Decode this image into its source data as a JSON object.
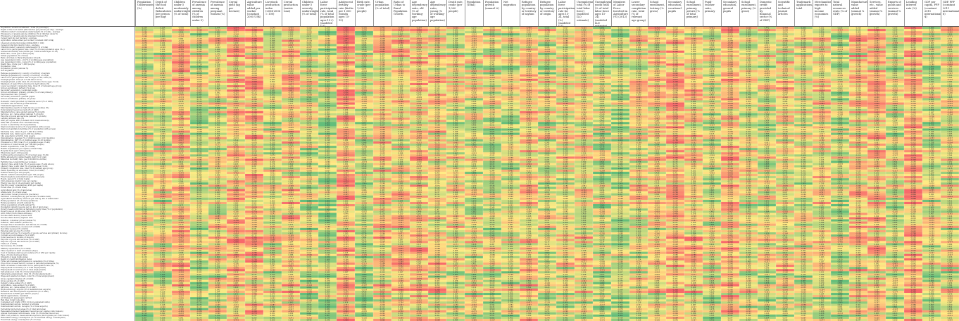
{
  "chart_data": {
    "type": "heatmap",
    "color_scale": {
      "low": "#f8696b",
      "mid": "#ffeb84",
      "high": "#63be7b"
    },
    "columns": [
      "Population Undernourished, (%)",
      "Depth of the food deficit (kilocalories per person per day)",
      "Children under 5 moderately underweight (% of total)",
      "Prevalence of anemia among children (% of children under 5)",
      "Prevalence of anemia among pregnant women (%)",
      "Cereal yield (kg per hectare)",
      "Agriculture value added per worker (constant 2005 US$)",
      "Livestock production index (2004-2006 = 100)",
      "Cereal production (metric tons)",
      "Children under 5 severely underweight (% of total)",
      "Labor force participation rate, total (% of total population ages 15+) (modeled ILO estimate)",
      "Adolescent fertility rate (births per 1,000 women ages 15-19)",
      "Birth rate, crude (per 1,000 people)",
      "Urban population (% of total)",
      "Ratio of Urban to Rural Population Growth",
      "Age dependency ratio, old (% of working-age population)",
      "Age dependency ratio, young (% of working-age population)",
      "Death rate, crude (per 1,000 people)",
      "Population (Total)",
      "Population growth (annual %)",
      "Net migration",
      "Refugee population by country or territory of asylum",
      "Refugee population by country or territory of origin",
      "Labor force participation rate for ages 15-24, total (%) (modeled ILO estimate)",
      "Unemployment, total (% of total labor force) (modeled ILO estimate)",
      "Unemployment, youth total (% of total labor force ages 15-24) (modeled ILO estimate)",
      "Members of Labor Force Involved in Agriculture (%) (2012)",
      "Lower secondary completion rate, total (% of relevant age group)",
      "School enrollment, tertiary (% gross)",
      "Secondary education, vocational pupils",
      "School enrollment, primary, private (% of total primary)",
      "Pupil-teacher ratio, primary",
      "Secondary education, general pupils",
      "School enrollment, primary (% gross)",
      "Domestic credit provided by financial sector (% of GDP)",
      "Scientific and technical journal articles",
      "Trademark applications, total",
      "Merchandise exports to high-income economies (%)",
      "Total natural resources rents (% of GDP)",
      "Manufacturing, value added (annual % growth)",
      "Services, etc., value added (annual % growth)",
      "Exports of goods and services (annual % growth)",
      "Lending interest rate (%)",
      "GDP per capita, PPP (constant 2011 international $)",
      "GDP, PPP (constant 2011 international $)"
    ],
    "rows": [
      "Population, undernourishment - Total (%) (average)",
      "Depth of the food deficit (kilocalories per person per day) - average",
      "Children under 5 moderately underweight (% of total) - average",
      "Prevalence of anemia among children (% of children under 5)",
      "Prevalence of anemia among pregnant women (%)",
      "Cereal yield (kg per hectare) - average",
      "Agriculture value added per worker (constant 2005 US$)",
      "Livestock production index (2004-2006 = 100)",
      "Cereal production (metric tons) - average",
      "Children under 5 severely underweight (% of total)",
      "Labor force participation rate, total (% of total population ages 15+)",
      "Adolescent fertility rate (births per 1,000 women ages 15-19)",
      "Birth rate, crude (per 1,000 people)",
      "Urban population (% of total)",
      "Ratio of Urban to Rural Population Growth",
      "Age dependency ratio, old (% of working-age population)",
      "Age dependency ratio, young (% of working-age population)",
      "Death rate, crude (per 1,000 people)",
      "Population, total",
      "Population growth (annual %)",
      "Net migration",
      "Refugee population by country or territory of asylum",
      "Refugee population by country or territory of origin",
      "Labor force participation rate for ages 15-24, total (%)",
      "Unemployment, total (% of total labor force)",
      "Unemployment, youth total (% of total labor force ages 15-24)",
      "Members of Labor Force Involved in Agriculture (%)",
      "Lower secondary completion rate, total (% of relevant age group)",
      "School enrollment, tertiary (% gross)",
      "Secondary education, vocational pupils",
      "School enrollment, primary, private (% of total primary)",
      "Pupil-teacher ratio, primary",
      "Secondary education, general pupils",
      "School enrollment, primary (% gross)",
      "Domestic credit provided by financial sector (% of GDP)",
      "Scientific and technical journal articles",
      "Trademark applications, total",
      "Merchandise exports to high-income economies (%)",
      "Total natural resources rents (% of GDP)",
      "Manufacturing, value added (annual % growth)",
      "Services, etc., value added (annual % growth)",
      "Exports of goods and services (annual % growth)",
      "Lending interest rate (%)",
      "GDP per capita, PPP (constant 2011 international $)",
      "GDP, PPP (constant 2011 international $)",
      "Access to electricity (% of population)",
      "Improved water source (% of population with access)",
      "Improved sanitation facilities (% of population with access)",
      "Mortality rate, under-5 (per 1,000 live births)",
      "Mortality rate, infant (per 1,000 live births)",
      "Life expectancy at birth, total (years)",
      "Immunization, measles (% of children ages 12-23 months)",
      "Immunization, DPT (% of children ages 12-23 months)",
      "Prevalence of HIV, total (% of population ages 15-49)",
      "Incidence of tuberculosis (per 100,000 people)",
      "Health expenditure, total (% of GDP)",
      "Health expenditure per capita (current US$)",
      "Hospital beds (per 1,000 people)",
      "Physicians (per 1,000 people)",
      "Contraceptive prevalence (% of women ages 15-49)",
      "Births attended by skilled health staff (% of total)",
      "Maternal mortality ratio (per 100,000 live births)",
      "Fertility rate, total (births per woman)",
      "Literacy rate, adult total (% of people ages 15 and above)",
      "Literacy rate, youth total (% of people ages 15-24)",
      "Primary completion rate, total (% of relevant age group)",
      "Public spending on education, total (% of GDP)",
      "Internet users (per 100 people)",
      "Mobile cellular subscriptions (per 100 people)",
      "Fixed telephone subscriptions (per 100 people)",
      "Roads, paved (% of total roads)",
      "CO2 emissions (metric tons per capita)",
      "Energy use (kg of oil equivalent per capita)",
      "Electric power consumption (kWh per capita)",
      "Forest area (% of land area)",
      "Agricultural land (% of land area)",
      "Arable land (% of land area)",
      "Land under cereal production (hectares)",
      "Fertilizer consumption (kg per hectare of arable land)",
      "Agricultural machinery, tractors per 100 sq. km of arable land",
      "Rural population (% of total population)",
      "Rural population growth (annual %)",
      "Urban population growth (annual %)",
      "Population density (people per sq. km of land area)",
      "Poverty headcount ratio at national poverty lines (% of population)",
      "Poverty gap at $1.90 a day (2011 PPP) (%)",
      "GINI index (World Bank estimate)",
      "Income share held by lowest 20%",
      "Income share held by highest 10%",
      "Inflation, consumer prices (annual %)",
      "Inflation, GDP deflator (annual %)",
      "Foreign direct investment, net inflows (% of GDP)",
      "Personal remittances, received (% of GDP)",
      "Net ODA received (% of GNI)",
      "External debt stocks (% of GNI)",
      "Total debt service (% of exports of goods, services and primary income)",
      "Current account balance (% of GDP)",
      "Total reserves in months of imports",
      "Exports of goods and services (% of GDP)",
      "Imports of goods and services (% of GDP)",
      "Trade (% of GDP)",
      "Tax revenue (% of GDP)",
      "Military expenditure (% of GDP)",
      "Time required to start a business (days)",
      "Cost of business start-up procedures (% of GNI per capita)",
      "Ease of doing business index",
      "Strength of legal rights index",
      "Depth of credit information index",
      "Firms with female participation in ownership (% of firms)",
      "Proportion of seats held by women in national parliaments (%)",
      "Ratio of female to male labor force participation rate (%)",
      "Employment in industry (% of total employment)",
      "Employment in services (% of total employment)",
      "Self-employed, total (% of total employment)",
      "Vulnerable employment, total (% of total employment)",
      "Wage and salaried workers, total (% of total employment)",
      "Gross capital formation (% of GDP)",
      "Gross savings (% of GDP)",
      "Industry, value added (% of GDP)",
      "Agriculture, value added (% of GDP)",
      "Services, etc., value added (% of GDP)",
      "High-technology exports (% of manufactured exports)",
      "Research and development expenditure (% of GDP)",
      "Researchers in R&D (per million people)",
      "Patent applications, residents",
      "Air transport, passengers carried",
      "Rail lines (total route-km)",
      "Container port traffic (TEU: 20 foot equivalent units)",
      "International tourism, number of arrivals",
      "International tourism, receipts (% of total exports)",
      "Terrestrial protected areas (% of total land area)",
      "Renewable internal freshwater resources per capita (cubic meters)",
      "Annual freshwater withdrawals, total (% of internal resources)",
      "PM2.5 air pollution, mean annual exposure (micrograms per cubic meter)",
      "Renewable energy consumption (% of total final energy consumption)",
      "Fossil fuel energy consumption (% of total)"
    ],
    "value_range": [
      -1,
      1
    ],
    "seed": 20240917
  }
}
